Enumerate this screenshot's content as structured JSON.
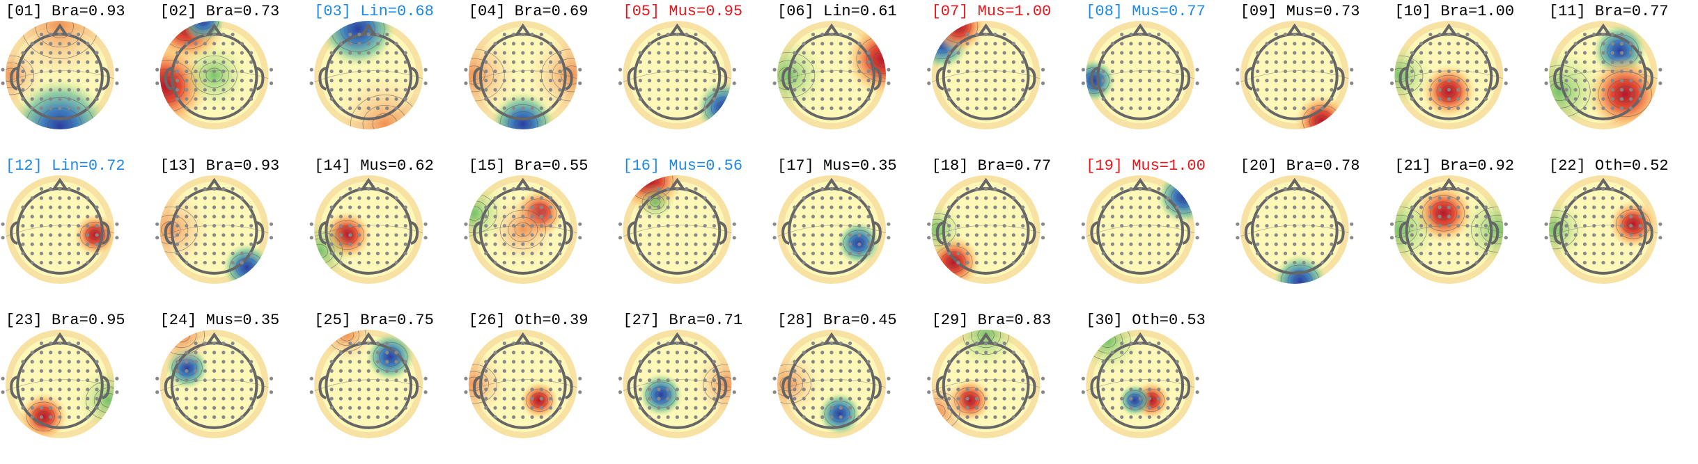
{
  "components": [
    {
      "title": "[01] Bra=0.93",
      "color": "#000000"
    },
    {
      "title": "[02] Bra=0.73",
      "color": "#000000"
    },
    {
      "title": "[03] Lin=0.68",
      "color": "#1e88e5"
    },
    {
      "title": "[04] Bra=0.69",
      "color": "#000000"
    },
    {
      "title": "[05] Mus=0.95",
      "color": "#e8161b"
    },
    {
      "title": "[06] Lin=0.61",
      "color": "#000000"
    },
    {
      "title": "[07] Mus=1.00",
      "color": "#e8161b"
    },
    {
      "title": "[08] Mus=0.77",
      "color": "#1e88e5"
    },
    {
      "title": "[09] Mus=0.73",
      "color": "#000000"
    },
    {
      "title": "[10] Bra=1.00",
      "color": "#000000"
    },
    {
      "title": "[11] Bra=0.77",
      "color": "#000000"
    },
    {
      "title": "[12] Lin=0.72",
      "color": "#1e88e5"
    },
    {
      "title": "[13] Bra=0.93",
      "color": "#000000"
    },
    {
      "title": "[14] Mus=0.62",
      "color": "#000000"
    },
    {
      "title": "[15] Bra=0.55",
      "color": "#000000"
    },
    {
      "title": "[16] Mus=0.56",
      "color": "#1e88e5"
    },
    {
      "title": "[17] Mus=0.35",
      "color": "#000000"
    },
    {
      "title": "[18] Bra=0.77",
      "color": "#000000"
    },
    {
      "title": "[19] Mus=1.00",
      "color": "#e8161b"
    },
    {
      "title": "[20] Bra=0.78",
      "color": "#000000"
    },
    {
      "title": "[21] Bra=0.92",
      "color": "#000000"
    },
    {
      "title": "[22] Oth=0.52",
      "color": "#000000"
    },
    {
      "title": "[23] Bra=0.95",
      "color": "#000000"
    },
    {
      "title": "[24] Mus=0.35",
      "color": "#000000"
    },
    {
      "title": "[25] Bra=0.75",
      "color": "#000000"
    },
    {
      "title": "[26] Oth=0.39",
      "color": "#000000"
    },
    {
      "title": "[27] Bra=0.71",
      "color": "#000000"
    },
    {
      "title": "[28] Bra=0.45",
      "color": "#000000"
    },
    {
      "title": "[29] Bra=0.83",
      "color": "#000000"
    },
    {
      "title": "[30] Oth=0.53",
      "color": "#000000"
    }
  ]
}
